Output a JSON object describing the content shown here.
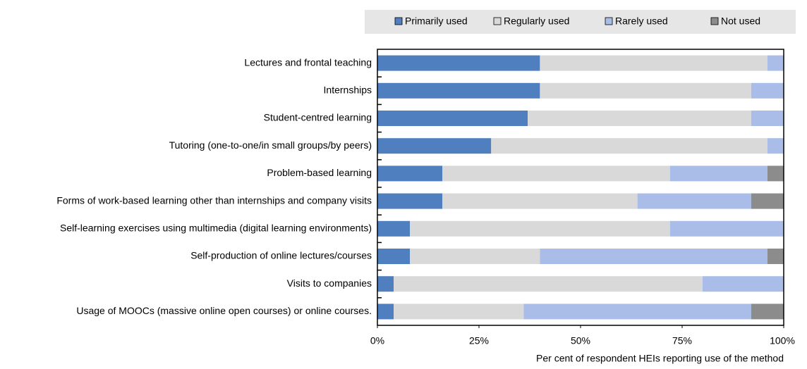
{
  "chart_data": {
    "type": "stacked_barh",
    "x_label": "Per cent of respondent HEIs reporting use of the method",
    "categories": [
      "Lectures and frontal teaching",
      "Internships",
      "Student-centred learning",
      "Tutoring (one-to-one/in small groups/by peers)",
      "Problem-based learning",
      "Forms of work-based learning other than internships and company visits",
      "Self-learning exercises using multimedia (digital learning environments)",
      "Self-production of online lectures/courses",
      "Visits to companies",
      "Usage of MOOCs (massive online open courses) or online courses."
    ],
    "series": [
      {
        "name": "Primarily used",
        "color": "#4f7fbe",
        "values": [
          40,
          40,
          37,
          28,
          16,
          16,
          8,
          8,
          4,
          4
        ]
      },
      {
        "name": "Regularly used",
        "color": "#d9d9d9",
        "values": [
          56,
          52,
          55,
          68,
          56,
          48,
          64,
          32,
          76,
          32
        ]
      },
      {
        "name": "Rarely used",
        "color": "#a9bde8",
        "values": [
          4,
          8,
          8,
          4,
          24,
          28,
          28,
          56,
          20,
          56
        ]
      },
      {
        "name": "Not used",
        "color": "#8c8c8c",
        "values": [
          0,
          0,
          0,
          0,
          4,
          8,
          0,
          4,
          0,
          8
        ]
      }
    ],
    "xlim": [
      0,
      100
    ],
    "xticks": [
      {
        "value": 0,
        "label": "0%"
      },
      {
        "value": 25,
        "label": "25%"
      },
      {
        "value": 50,
        "label": "50%"
      },
      {
        "value": 75,
        "label": "75%"
      },
      {
        "value": 100,
        "label": "100%"
      }
    ],
    "legend": "top"
  }
}
